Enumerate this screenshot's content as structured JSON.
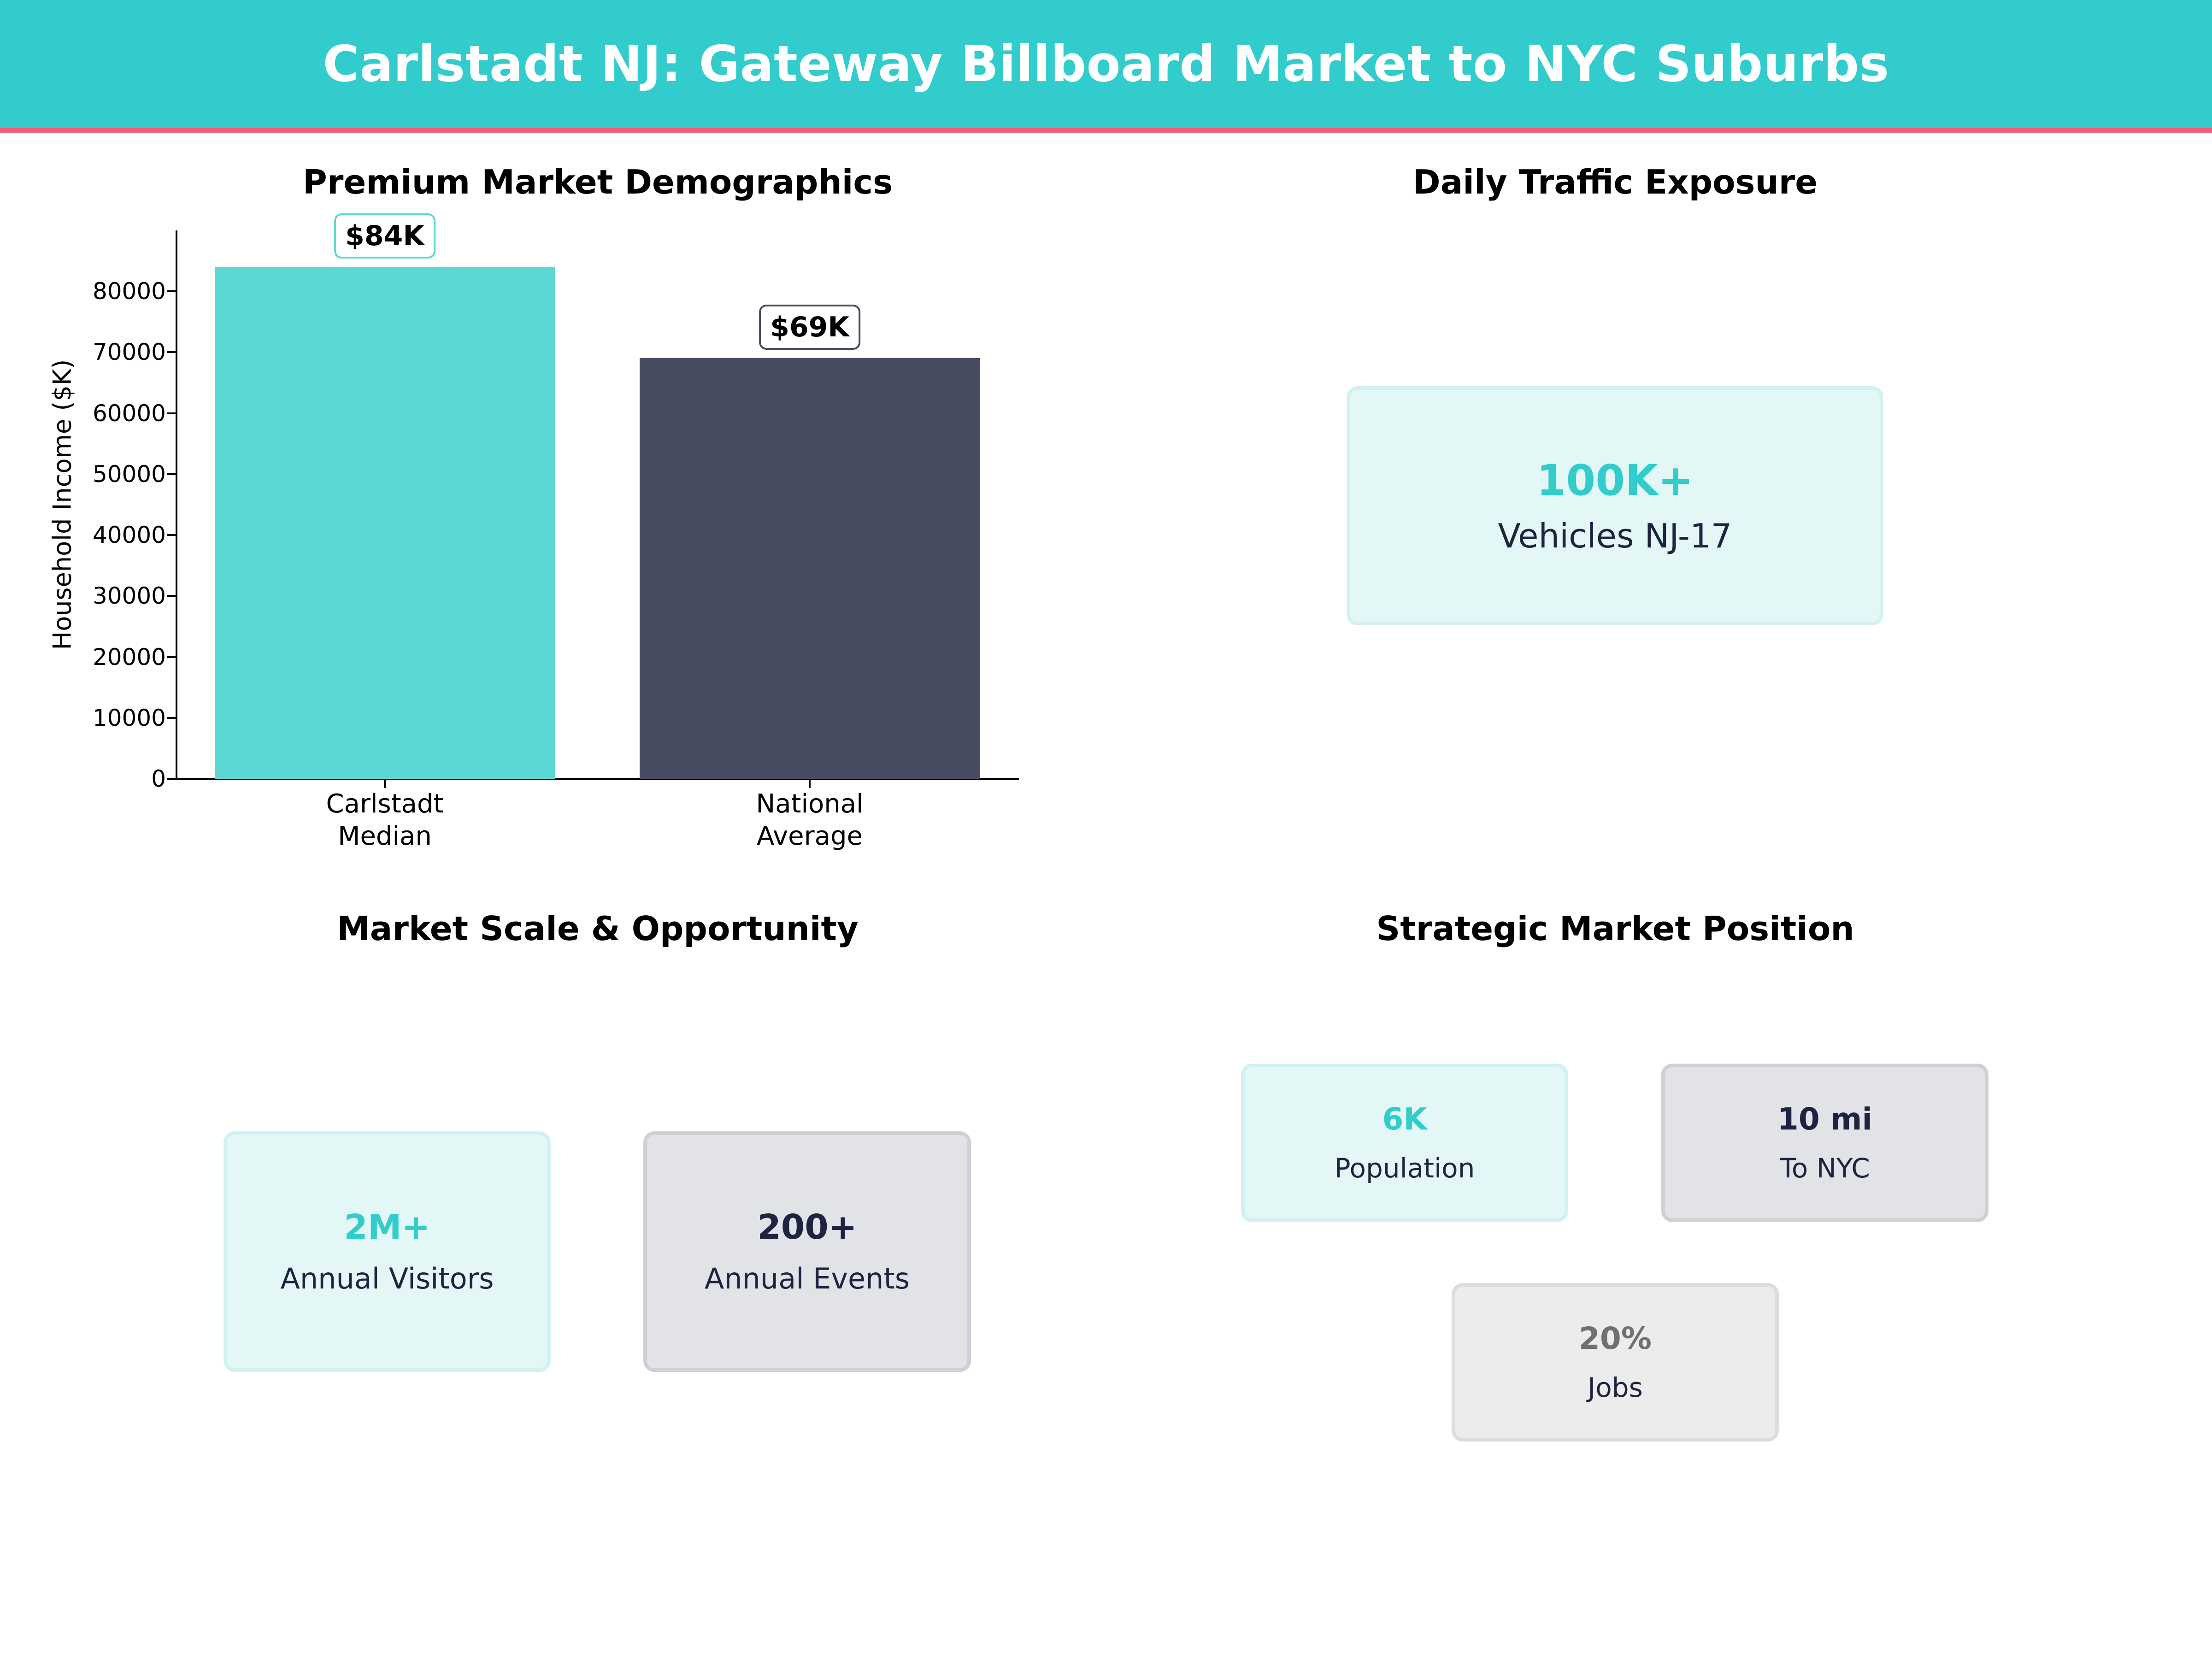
{
  "header": {
    "title": "Carlstadt NJ: Gateway Billboard Market to NYC Suburbs"
  },
  "colors": {
    "accent_teal": "#33CCCC",
    "accent_pink": "#F25C7A",
    "bar_teal": "#5CD8D4",
    "bar_navy": "#474C61",
    "text_navy": "#1E2340",
    "text_gray": "#707070"
  },
  "panels": {
    "demographics": {
      "title": "Premium Market Demographics"
    },
    "traffic": {
      "title": "Daily Traffic Exposure",
      "card": {
        "value": "100K+",
        "label": "Vehicles NJ-17"
      }
    },
    "scale": {
      "title": "Market Scale & Opportunity",
      "cards": [
        {
          "value": "2M+",
          "label": "Annual Visitors"
        },
        {
          "value": "200+",
          "label": "Annual Events"
        }
      ]
    },
    "position": {
      "title": "Strategic Market Position",
      "cards": [
        {
          "value": "6K",
          "label": "Population"
        },
        {
          "value": "10 mi",
          "label": "To NYC"
        },
        {
          "value": "20%",
          "label": "Jobs"
        }
      ]
    }
  },
  "chart_data": {
    "type": "bar",
    "title": "Premium Market Demographics",
    "categories": [
      "Carlstadt\nMedian",
      "National\nAverage"
    ],
    "values": [
      84000,
      69000
    ],
    "value_labels": [
      "$84K",
      "$69K"
    ],
    "xlabel": "",
    "ylabel": "Household Income ($K)",
    "ylim": [
      0,
      88200
    ],
    "yticks": [
      "0",
      "10000",
      "20000",
      "30000",
      "40000",
      "50000",
      "60000",
      "70000",
      "80000"
    ],
    "grid": false,
    "legend": null,
    "colors": [
      "#5CD8D4",
      "#474C61"
    ]
  }
}
